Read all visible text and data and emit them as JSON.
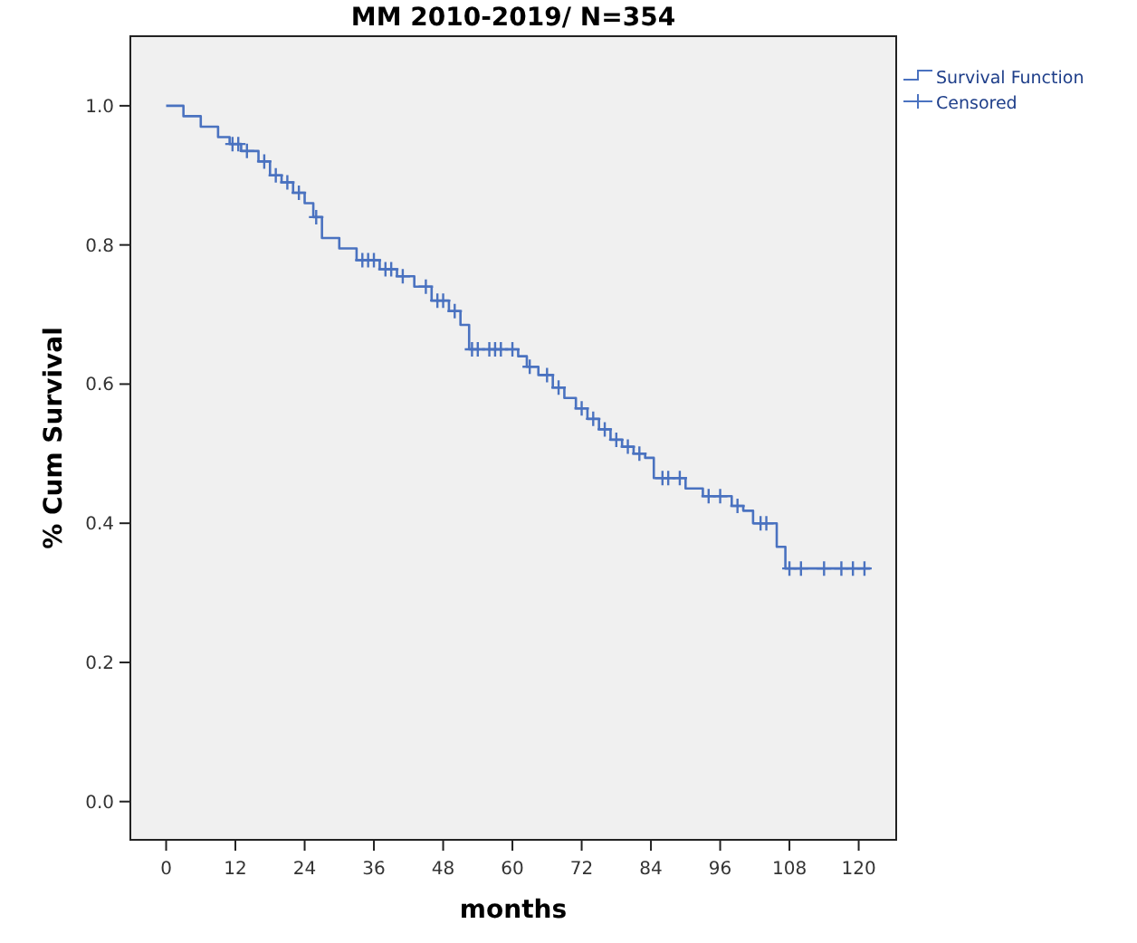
{
  "chart_data": {
    "type": "step",
    "title": "MM 2010-2019/ N=354",
    "xlabel": "months",
    "ylabel": "% Cum Survival",
    "xlim": [
      -6.2,
      126.5
    ],
    "xticks": [
      0,
      12,
      24,
      36,
      48,
      60,
      72,
      84,
      96,
      108,
      120
    ],
    "ylim": [
      -0.055,
      1.1
    ],
    "yticks": [
      {
        "value": 0,
        "label": "0.0"
      },
      0.2,
      0.4,
      0.6,
      0.8,
      {
        "value": 1,
        "label": "1.0"
      }
    ],
    "grid": false,
    "legend": "top right",
    "series": [
      {
        "name": "Survival Function",
        "color": "#4a72c0",
        "marker": "none",
        "x": [
          0,
          3,
          6,
          9,
          11,
          13,
          16,
          18,
          20,
          22,
          24,
          25.5,
          27,
          30,
          33,
          37,
          40,
          43,
          46,
          49,
          51,
          52.5,
          61,
          62.5,
          64.5,
          67,
          69,
          71,
          73,
          75,
          77,
          79,
          81,
          83,
          84.5,
          90,
          93,
          98,
          100,
          101.7,
          105.8,
          107.3,
          122
        ],
        "values": [
          1.0,
          0.985,
          0.97,
          0.955,
          0.945,
          0.935,
          0.92,
          0.9,
          0.89,
          0.875,
          0.86,
          0.84,
          0.81,
          0.795,
          0.778,
          0.765,
          0.755,
          0.74,
          0.72,
          0.705,
          0.685,
          0.65,
          0.64,
          0.625,
          0.613,
          0.595,
          0.58,
          0.565,
          0.55,
          0.535,
          0.52,
          0.51,
          0.5,
          0.494,
          0.465,
          0.45,
          0.439,
          0.425,
          0.418,
          0.4,
          0.366,
          0.335,
          0.335
        ]
      },
      {
        "name": "Censored",
        "type": "scatter",
        "color": "#4a72c0",
        "marker": "cross",
        "x": [
          11.5,
          12.5,
          14,
          17,
          19,
          21,
          23,
          26,
          34,
          35,
          36,
          38,
          39,
          41,
          45,
          47,
          48,
          50,
          53,
          54,
          56,
          57,
          58,
          60,
          63,
          66,
          68,
          72,
          74,
          76,
          78,
          80,
          82,
          86,
          87,
          89,
          94,
          96,
          99,
          103,
          104,
          108,
          110,
          114,
          117,
          119,
          121
        ],
        "values": [
          0.945,
          0.945,
          0.935,
          0.92,
          0.9,
          0.89,
          0.875,
          0.84,
          0.778,
          0.778,
          0.778,
          0.765,
          0.765,
          0.755,
          0.74,
          0.72,
          0.72,
          0.705,
          0.65,
          0.65,
          0.65,
          0.65,
          0.65,
          0.65,
          0.625,
          0.613,
          0.595,
          0.565,
          0.55,
          0.535,
          0.52,
          0.51,
          0.5,
          0.465,
          0.465,
          0.465,
          0.439,
          0.439,
          0.425,
          0.4,
          0.4,
          0.335,
          0.335,
          0.335,
          0.335,
          0.335,
          0.335
        ]
      }
    ]
  }
}
